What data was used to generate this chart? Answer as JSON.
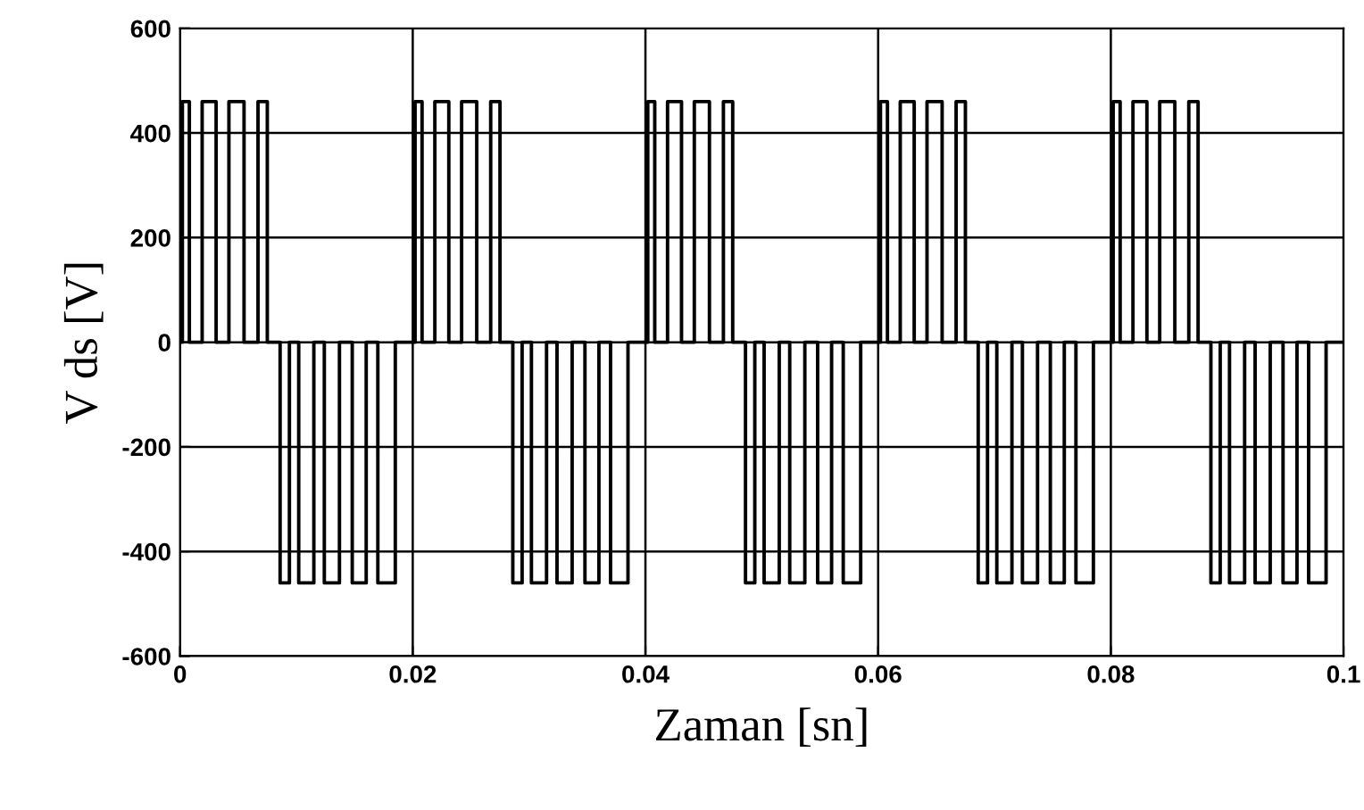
{
  "chart_data": {
    "type": "step",
    "xlabel": "Zaman [sn]",
    "ylabel": "V ds [V]",
    "xlim": [
      0,
      0.1
    ],
    "ylim": [
      -600,
      600
    ],
    "xticks": [
      0,
      0.02,
      0.04,
      0.06,
      0.08,
      0.1
    ],
    "yticks": [
      -600,
      -400,
      -200,
      0,
      200,
      400,
      600
    ],
    "grid": true,
    "line_style": "solid",
    "marker": "none",
    "series": [
      {
        "color": "#000000",
        "x": [
          0,
          0.0002,
          0.0008,
          0.0019,
          0.0031,
          0.0042,
          0.0055,
          0.0067,
          0.0075,
          0.0086,
          0.0094,
          0.0102,
          0.0115,
          0.0124,
          0.0137,
          0.0148,
          0.016,
          0.017,
          0.0185,
          0.0202,
          0.0208,
          0.0219,
          0.0231,
          0.0242,
          0.0255,
          0.0267,
          0.0275,
          0.0286,
          0.0294,
          0.0302,
          0.0315,
          0.0324,
          0.0337,
          0.0348,
          0.036,
          0.037,
          0.0385,
          0.0402,
          0.0408,
          0.0419,
          0.0431,
          0.0442,
          0.0455,
          0.0467,
          0.0475,
          0.0486,
          0.0494,
          0.0502,
          0.0515,
          0.0524,
          0.0537,
          0.0548,
          0.056,
          0.057,
          0.0585,
          0.0602,
          0.0608,
          0.0619,
          0.0631,
          0.0642,
          0.0655,
          0.0667,
          0.0675,
          0.0686,
          0.0694,
          0.0702,
          0.0715,
          0.0724,
          0.0737,
          0.0748,
          0.076,
          0.077,
          0.0785,
          0.0802,
          0.0808,
          0.0819,
          0.0831,
          0.0842,
          0.0855,
          0.0867,
          0.0875,
          0.0886,
          0.0894,
          0.0902,
          0.0915,
          0.0924,
          0.0937,
          0.0948,
          0.096,
          0.097,
          0.0985,
          0.1
        ],
        "values": [
          0,
          460,
          0,
          460,
          0,
          460,
          0,
          460,
          0,
          -460,
          0,
          -460,
          0,
          -460,
          0,
          -460,
          0,
          -460,
          0,
          460,
          0,
          460,
          0,
          460,
          0,
          460,
          0,
          -460,
          0,
          -460,
          0,
          -460,
          0,
          -460,
          0,
          -460,
          0,
          460,
          0,
          460,
          0,
          460,
          0,
          460,
          0,
          -460,
          0,
          -460,
          0,
          -460,
          0,
          -460,
          0,
          -460,
          0,
          460,
          0,
          460,
          0,
          460,
          0,
          460,
          0,
          -460,
          0,
          -460,
          0,
          -460,
          0,
          -460,
          0,
          -460,
          0,
          460,
          0,
          460,
          0,
          460,
          0,
          460,
          0,
          -460,
          0,
          -460,
          0,
          -460,
          0,
          -460,
          0,
          -460,
          0,
          0
        ]
      }
    ]
  }
}
